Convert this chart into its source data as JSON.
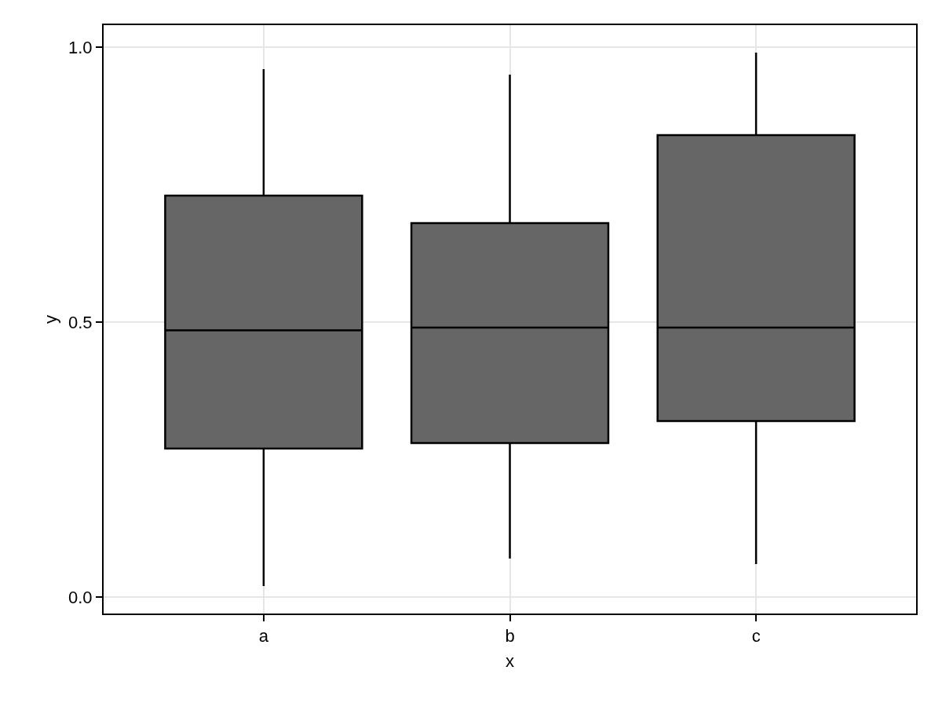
{
  "chart_data": {
    "type": "box",
    "xlabel": "x",
    "ylabel": "y",
    "categories": [
      "a",
      "b",
      "c"
    ],
    "series": [
      {
        "color": "#666666",
        "boxes": [
          {
            "low": 0.02,
            "q1": 0.27,
            "median": 0.485,
            "q3": 0.73,
            "high": 0.96
          },
          {
            "low": 0.07,
            "q1": 0.28,
            "median": 0.49,
            "q3": 0.68,
            "high": 0.95
          },
          {
            "low": 0.06,
            "q1": 0.32,
            "median": 0.49,
            "q3": 0.84,
            "high": 0.99
          }
        ]
      }
    ],
    "ylim": [
      -0.03,
      1.04
    ],
    "yticks": [
      {
        "value": 0,
        "label": "0.0"
      },
      {
        "value": 0.5,
        "label": "0.5"
      },
      {
        "value": 1,
        "label": "1.0"
      }
    ],
    "grid": true
  }
}
